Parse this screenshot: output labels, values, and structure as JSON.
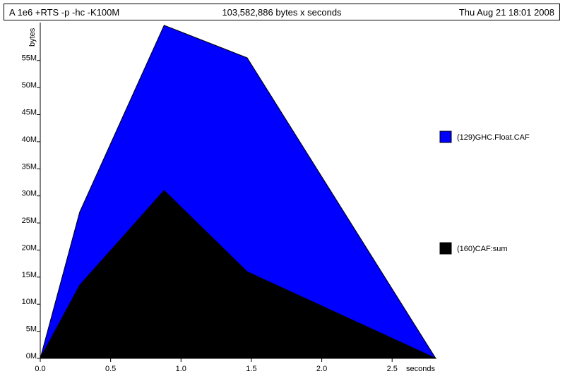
{
  "header": {
    "program": "A 1e6 +RTS -p -hc -K100M",
    "total": "103,582,886 bytes x seconds",
    "date": "Thu Aug 21 18:01 2008"
  },
  "chart_data": {
    "type": "area",
    "stacked": true,
    "title": "",
    "xlabel": "seconds",
    "ylabel": "bytes",
    "xlim": [
      0,
      2.81
    ],
    "ylim": [
      0,
      62000000
    ],
    "x": [
      0,
      0.28,
      0.88,
      1.47,
      2.81
    ],
    "x_ticks": [
      0,
      0.5,
      1.0,
      1.5,
      2.0,
      2.5
    ],
    "x_tick_labels": [
      "0.0",
      "0.5",
      "1.0",
      "1.5",
      "2.0",
      "2.5"
    ],
    "y_ticks": [
      0,
      5000000,
      10000000,
      15000000,
      20000000,
      25000000,
      30000000,
      35000000,
      40000000,
      45000000,
      50000000,
      55000000
    ],
    "y_tick_labels": [
      "0M",
      "5M",
      "10M",
      "15M",
      "20M",
      "25M",
      "30M",
      "35M",
      "40M",
      "45M",
      "50M",
      "55M"
    ],
    "legend_position": "right",
    "series": [
      {
        "name": "(160)CAF:sum",
        "color": "#000000",
        "values": [
          0,
          13500000,
          31000000,
          16000000,
          0
        ]
      },
      {
        "name": "(129)GHC.Float.CAF",
        "color": "#0000ff",
        "values": [
          0,
          13500000,
          30500000,
          39500000,
          0
        ]
      }
    ],
    "legend": [
      {
        "name": "(129)GHC.Float.CAF",
        "color": "#0000ff"
      },
      {
        "name": "(160)CAF:sum",
        "color": "#000000"
      }
    ]
  }
}
